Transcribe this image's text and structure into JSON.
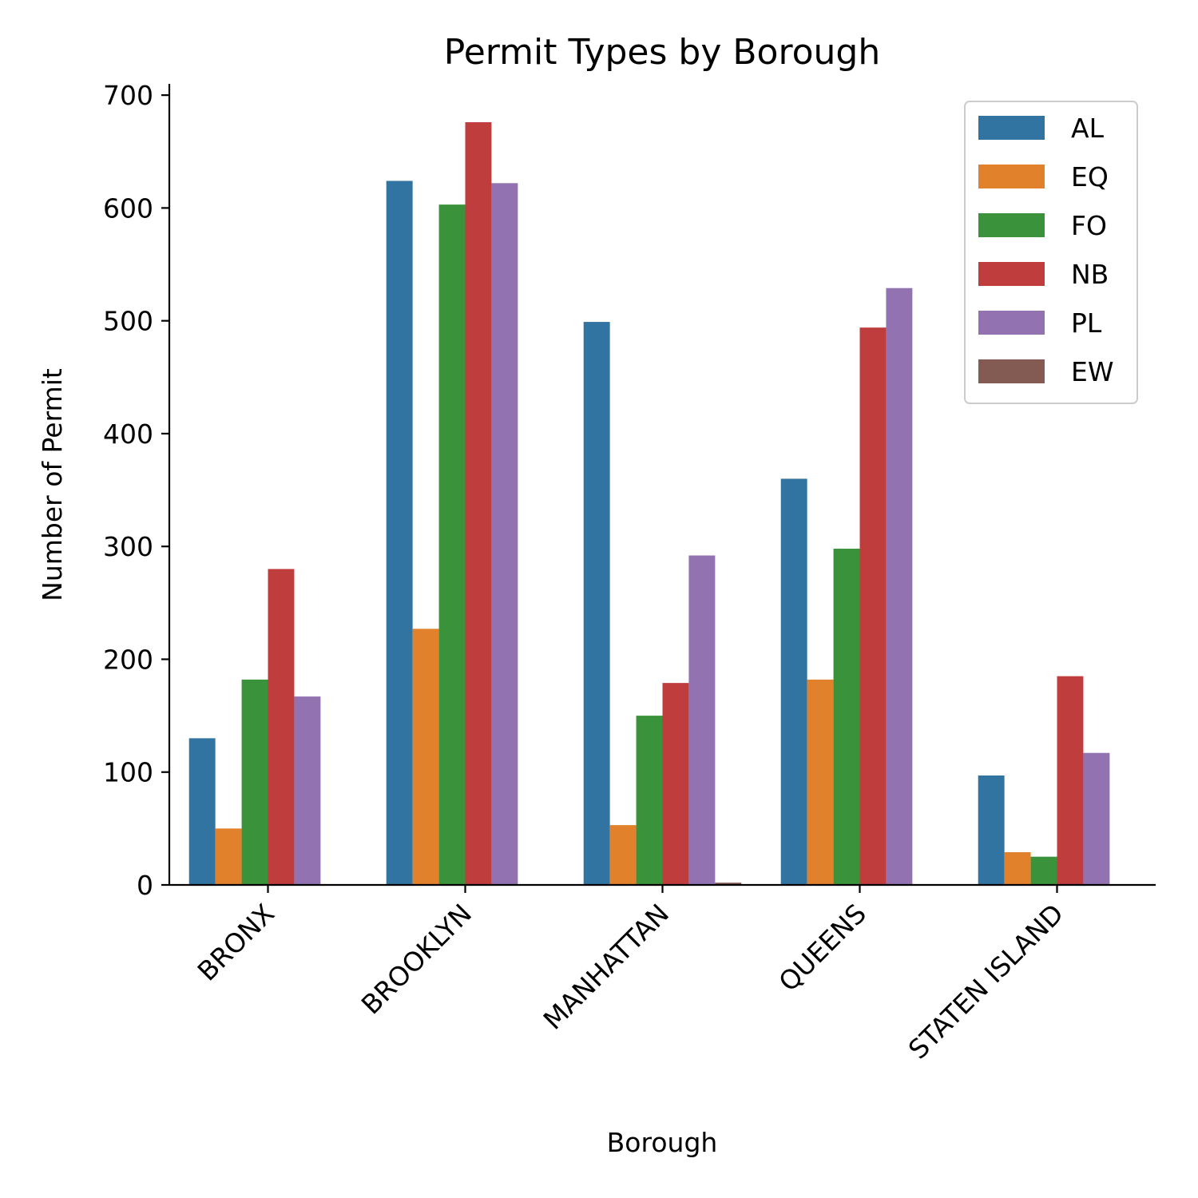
{
  "chart_data": {
    "type": "bar",
    "title": "Permit Types by Borough",
    "xlabel": "Borough",
    "ylabel": "Number of Permit",
    "ylim": [
      0,
      710
    ],
    "yticks": [
      0,
      100,
      200,
      300,
      400,
      500,
      600,
      700
    ],
    "categories": [
      "BRONX",
      "BROOKLYN",
      "MANHATTAN",
      "QUEENS",
      "STATEN ISLAND"
    ],
    "series": [
      {
        "name": "AL",
        "color": "#3274a1",
        "values": [
          130,
          624,
          499,
          360,
          97
        ]
      },
      {
        "name": "EQ",
        "color": "#e1812c",
        "values": [
          50,
          227,
          53,
          182,
          29
        ]
      },
      {
        "name": "FO",
        "color": "#3a923a",
        "values": [
          182,
          603,
          150,
          298,
          25
        ]
      },
      {
        "name": "NB",
        "color": "#c03d3e",
        "values": [
          280,
          676,
          179,
          494,
          185
        ]
      },
      {
        "name": "PL",
        "color": "#9372b2",
        "values": [
          167,
          622,
          292,
          529,
          117
        ]
      },
      {
        "name": "EW",
        "color": "#845b53",
        "values": [
          0,
          0,
          2,
          0,
          0
        ]
      }
    ],
    "legend": "top-right",
    "grid": false,
    "x_tick_rotation": 45
  }
}
